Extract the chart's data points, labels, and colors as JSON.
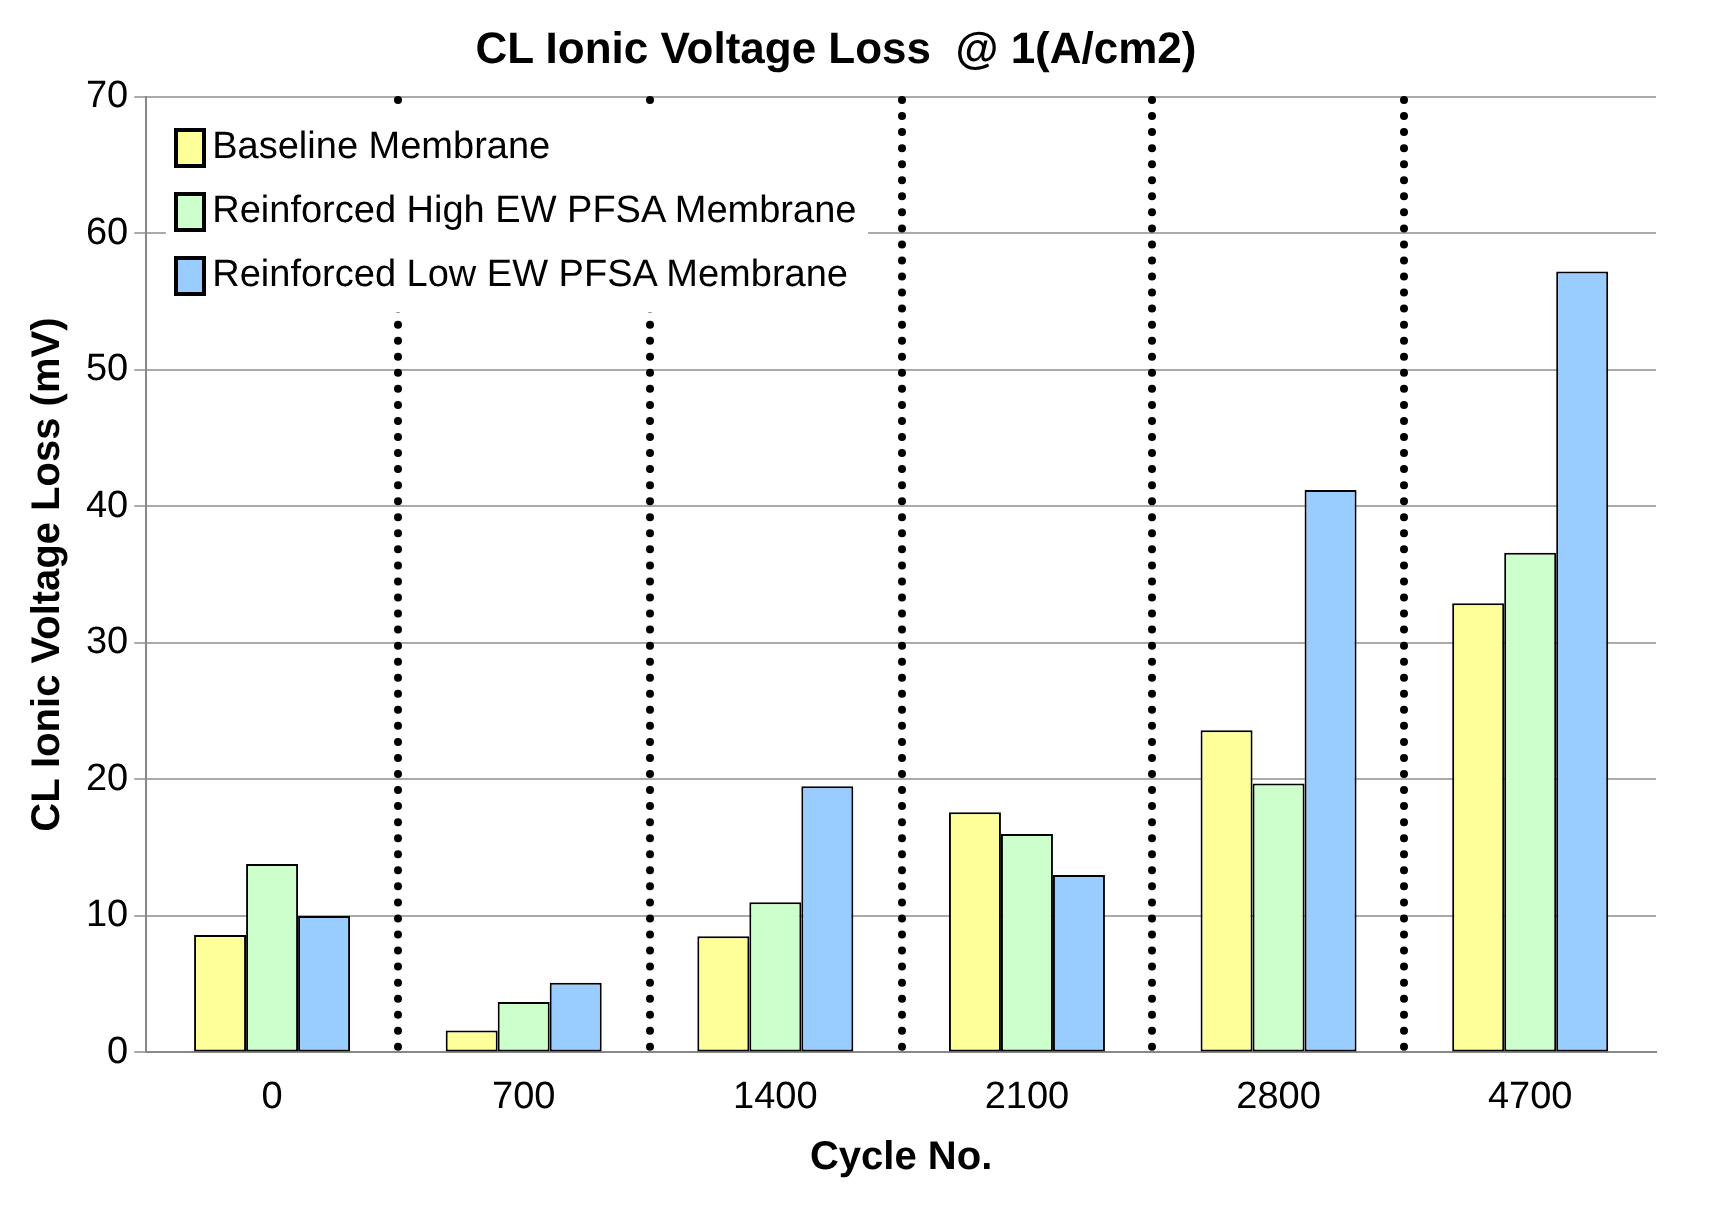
{
  "chart_data": {
    "type": "bar",
    "title": "CL Ionic Voltage Loss  @ 1(A/cm2)",
    "xlabel": "Cycle No.",
    "ylabel": "CL Ionic Voltage Loss (mV)",
    "categories": [
      "0",
      "700",
      "1400",
      "2100",
      "2800",
      "4700"
    ],
    "series": [
      {
        "name": "Baseline Membrane",
        "color": "#ffff99",
        "values": [
          8.6,
          1.6,
          8.5,
          17.6,
          23.6,
          32.9
        ]
      },
      {
        "name": "Reinforced High EW PFSA Membrane",
        "color": "#ccffcc",
        "values": [
          13.8,
          3.7,
          11,
          16,
          19.7,
          36.6
        ]
      },
      {
        "name": "Reinforced Low EW PFSA Membrane",
        "color": "#99ccff",
        "values": [
          10,
          5.1,
          19.5,
          13,
          41.2,
          57.2
        ]
      }
    ],
    "ylim": [
      0,
      70
    ],
    "yticks": [
      0,
      10,
      20,
      30,
      40,
      50,
      60,
      70
    ],
    "grid": "y",
    "legend": "top left"
  }
}
